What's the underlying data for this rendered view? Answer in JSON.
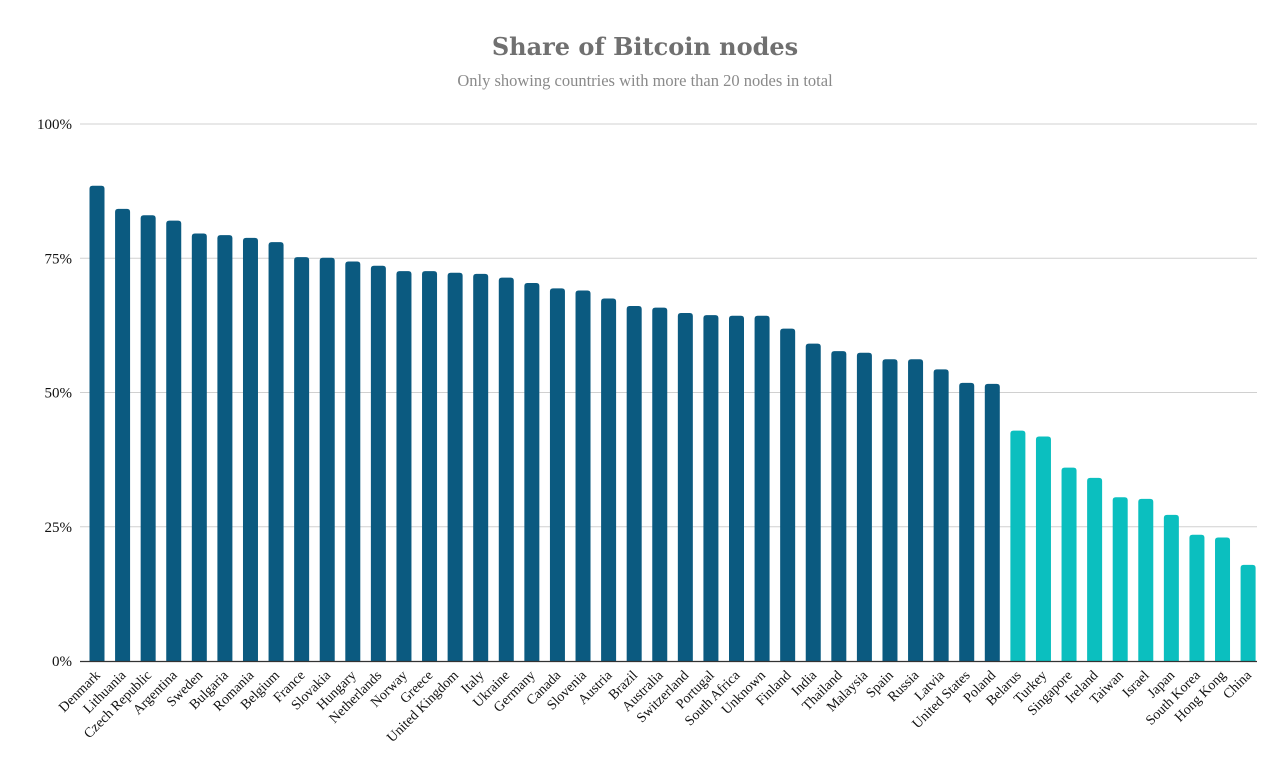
{
  "chart_data": {
    "type": "bar",
    "title": "Share of Bitcoin nodes",
    "subtitle": "Only showing countries with more than 20 nodes in total",
    "xlabel": "",
    "ylabel": "",
    "ylim": [
      0,
      100
    ],
    "yticks": [
      0,
      25,
      50,
      75,
      100
    ],
    "ytick_labels": [
      "0%",
      "25%",
      "50%",
      "75%",
      "100%"
    ],
    "grid": true,
    "colors": {
      "dark": "#0b5a80",
      "light": "#0bbfbf"
    },
    "categories": [
      "Denmark",
      "Lithuania",
      "Czech Republic",
      "Argentina",
      "Sweden",
      "Bulgaria",
      "Romania",
      "Belgium",
      "France",
      "Slovakia",
      "Hungary",
      "Netherlands",
      "Norway",
      "Greece",
      "United Kingdom",
      "Italy",
      "Ukraine",
      "Germany",
      "Canada",
      "Slovenia",
      "Austria",
      "Brazil",
      "Australia",
      "Switzerland",
      "Portugal",
      "South Africa",
      "Unknown",
      "Finland",
      "India",
      "Thailand",
      "Malaysia",
      "Spain",
      "Russia",
      "Latvia",
      "United States",
      "Poland",
      "Belarus",
      "Turkey",
      "Singapore",
      "Ireland",
      "Taiwan",
      "Israel",
      "Japan",
      "South Korea",
      "Hong Kong",
      "China"
    ],
    "values": [
      88.5,
      84.2,
      83.0,
      82.0,
      79.6,
      79.3,
      78.8,
      78.0,
      75.2,
      75.1,
      74.4,
      73.6,
      72.6,
      72.6,
      72.3,
      72.1,
      71.4,
      70.4,
      69.4,
      69.0,
      67.5,
      66.1,
      65.8,
      64.8,
      64.4,
      64.3,
      64.3,
      61.9,
      59.1,
      57.7,
      57.4,
      56.2,
      56.2,
      54.3,
      51.8,
      51.6,
      42.9,
      41.8,
      36.0,
      34.1,
      30.5,
      30.2,
      27.2,
      23.5,
      23.0,
      17.9
    ],
    "highlight_from_index": 36
  }
}
